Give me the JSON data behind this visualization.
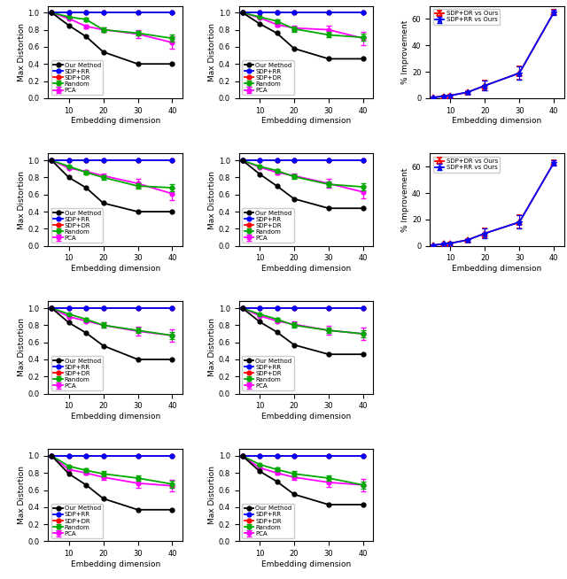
{
  "dims": [
    5,
    10,
    15,
    20,
    30,
    40
  ],
  "distortion_plots": [
    {
      "row": 0,
      "col": 0,
      "our": [
        1.0,
        0.85,
        0.72,
        0.54,
        0.4,
        0.4
      ],
      "sdp_rr": [
        1.0,
        1.0,
        1.0,
        1.0,
        1.0,
        1.0
      ],
      "sdp_dr": [
        1.0,
        1.0,
        1.0,
        1.0,
        1.0,
        1.0
      ],
      "random": [
        1.0,
        0.95,
        0.92,
        0.8,
        0.76,
        0.7
      ],
      "pca": [
        1.0,
        0.93,
        0.84,
        0.8,
        0.75,
        0.65
      ],
      "random_err": [
        0,
        0.0,
        0.02,
        0.03,
        0.03,
        0.04
      ],
      "pca_err": [
        0,
        0.0,
        0.02,
        0.03,
        0.05,
        0.07
      ],
      "legend_loc": "lower left"
    },
    {
      "row": 0,
      "col": 1,
      "our": [
        1.0,
        0.87,
        0.76,
        0.58,
        0.46,
        0.46
      ],
      "sdp_rr": [
        1.0,
        1.0,
        1.0,
        1.0,
        1.0,
        1.0
      ],
      "sdp_dr": [
        1.0,
        1.0,
        1.0,
        1.0,
        1.0,
        1.0
      ],
      "random": [
        1.0,
        0.95,
        0.9,
        0.81,
        0.74,
        0.71
      ],
      "pca": [
        1.0,
        0.94,
        0.86,
        0.82,
        0.8,
        0.7
      ],
      "random_err": [
        0,
        0.0,
        0.02,
        0.03,
        0.03,
        0.04
      ],
      "pca_err": [
        0,
        0.0,
        0.02,
        0.03,
        0.05,
        0.08
      ],
      "legend_loc": "lower left"
    },
    {
      "row": 1,
      "col": 0,
      "our": [
        1.0,
        0.8,
        0.68,
        0.5,
        0.4,
        0.4
      ],
      "sdp_rr": [
        1.0,
        1.0,
        1.0,
        1.0,
        1.0,
        1.0
      ],
      "sdp_dr": [
        1.0,
        1.0,
        1.0,
        1.0,
        1.0,
        1.0
      ],
      "random": [
        1.0,
        0.93,
        0.86,
        0.8,
        0.7,
        0.68
      ],
      "pca": [
        1.0,
        0.91,
        0.87,
        0.82,
        0.73,
        0.61
      ],
      "random_err": [
        0,
        0.0,
        0.02,
        0.03,
        0.03,
        0.04
      ],
      "pca_err": [
        0,
        0.0,
        0.02,
        0.03,
        0.05,
        0.07
      ],
      "legend_loc": "lower left"
    },
    {
      "row": 1,
      "col": 1,
      "our": [
        1.0,
        0.84,
        0.7,
        0.55,
        0.44,
        0.44
      ],
      "sdp_rr": [
        1.0,
        1.0,
        1.0,
        1.0,
        1.0,
        1.0
      ],
      "sdp_dr": [
        1.0,
        1.0,
        1.0,
        1.0,
        1.0,
        1.0
      ],
      "random": [
        1.0,
        0.93,
        0.88,
        0.81,
        0.72,
        0.69
      ],
      "pca": [
        1.0,
        0.92,
        0.86,
        0.82,
        0.73,
        0.63
      ],
      "random_err": [
        0,
        0.0,
        0.02,
        0.03,
        0.03,
        0.04
      ],
      "pca_err": [
        0,
        0.0,
        0.02,
        0.03,
        0.05,
        0.07
      ],
      "legend_loc": "lower left"
    },
    {
      "row": 2,
      "col": 0,
      "our": [
        1.0,
        0.83,
        0.71,
        0.56,
        0.4,
        0.4
      ],
      "sdp_rr": [
        1.0,
        1.0,
        1.0,
        1.0,
        1.0,
        1.0
      ],
      "sdp_dr": [
        1.0,
        1.0,
        1.0,
        1.0,
        1.0,
        1.0
      ],
      "random": [
        1.0,
        0.93,
        0.87,
        0.8,
        0.74,
        0.68
      ],
      "pca": [
        1.0,
        0.9,
        0.85,
        0.8,
        0.73,
        0.68
      ],
      "random_err": [
        0,
        0.0,
        0.02,
        0.03,
        0.03,
        0.04
      ],
      "pca_err": [
        0,
        0.0,
        0.02,
        0.03,
        0.05,
        0.07
      ],
      "legend_loc": "lower left"
    },
    {
      "row": 2,
      "col": 1,
      "our": [
        1.0,
        0.84,
        0.72,
        0.57,
        0.46,
        0.46
      ],
      "sdp_rr": [
        1.0,
        1.0,
        1.0,
        1.0,
        1.0,
        1.0
      ],
      "sdp_dr": [
        1.0,
        1.0,
        1.0,
        1.0,
        1.0,
        1.0
      ],
      "random": [
        1.0,
        0.93,
        0.87,
        0.8,
        0.74,
        0.7
      ],
      "pca": [
        1.0,
        0.91,
        0.85,
        0.81,
        0.74,
        0.7
      ],
      "random_err": [
        0,
        0.0,
        0.02,
        0.03,
        0.03,
        0.04
      ],
      "pca_err": [
        0,
        0.0,
        0.02,
        0.03,
        0.05,
        0.07
      ],
      "legend_loc": "lower left"
    },
    {
      "row": 3,
      "col": 0,
      "our": [
        1.0,
        0.79,
        0.66,
        0.5,
        0.37,
        0.37
      ],
      "sdp_rr": [
        1.0,
        1.0,
        1.0,
        1.0,
        1.0,
        1.0
      ],
      "sdp_dr": [
        1.0,
        1.0,
        1.0,
        1.0,
        1.0,
        1.0
      ],
      "random": [
        1.0,
        0.88,
        0.83,
        0.79,
        0.74,
        0.67
      ],
      "pca": [
        1.0,
        0.84,
        0.8,
        0.75,
        0.68,
        0.65
      ],
      "random_err": [
        0,
        0.0,
        0.02,
        0.03,
        0.03,
        0.04
      ],
      "pca_err": [
        0,
        0.0,
        0.02,
        0.03,
        0.05,
        0.07
      ],
      "legend_loc": "lower left"
    },
    {
      "row": 3,
      "col": 1,
      "our": [
        1.0,
        0.82,
        0.7,
        0.55,
        0.43,
        0.43
      ],
      "sdp_rr": [
        1.0,
        1.0,
        1.0,
        1.0,
        1.0,
        1.0
      ],
      "sdp_dr": [
        1.0,
        1.0,
        1.0,
        1.0,
        1.0,
        1.0
      ],
      "random": [
        1.0,
        0.9,
        0.84,
        0.79,
        0.74,
        0.66
      ],
      "pca": [
        1.0,
        0.86,
        0.8,
        0.75,
        0.69,
        0.66
      ],
      "random_err": [
        0,
        0.0,
        0.02,
        0.03,
        0.03,
        0.04
      ],
      "pca_err": [
        0,
        0.0,
        0.02,
        0.03,
        0.05,
        0.07
      ],
      "legend_loc": "lower left"
    }
  ],
  "improvement_plots": [
    {
      "row": 0,
      "col": 2,
      "dr_vals": [
        0.5,
        1.5,
        2.0,
        4.5,
        9.5,
        19.0,
        65.0
      ],
      "rr_vals": [
        0.5,
        1.5,
        2.0,
        4.5,
        9.5,
        19.0,
        65.0
      ],
      "dr_err": [
        0.3,
        0.4,
        0.4,
        1.0,
        3.5,
        5.0,
        2.0
      ],
      "rr_err": [
        0.3,
        0.4,
        0.4,
        1.0,
        3.5,
        5.0,
        2.0
      ],
      "ylim": [
        0,
        70
      ],
      "yticks": [
        0,
        20,
        40,
        60
      ]
    },
    {
      "row": 1,
      "col": 2,
      "dr_vals": [
        0.5,
        1.5,
        2.0,
        4.5,
        9.5,
        18.0,
        63.0
      ],
      "rr_vals": [
        0.5,
        1.5,
        2.0,
        4.5,
        9.5,
        18.0,
        63.0
      ],
      "dr_err": [
        0.3,
        0.4,
        0.4,
        1.0,
        3.5,
        5.0,
        2.0
      ],
      "rr_err": [
        0.3,
        0.4,
        0.4,
        1.0,
        3.5,
        5.0,
        2.0
      ],
      "ylim": [
        0,
        70
      ],
      "yticks": [
        0,
        20,
        40,
        60
      ]
    }
  ],
  "imp_dims": [
    5,
    8,
    10,
    15,
    20,
    30,
    40
  ],
  "colors": {
    "our": "#000000",
    "sdp_rr": "#0000ff",
    "sdp_dr": "#ff0000",
    "random": "#00aa00",
    "pca": "#ff00ff",
    "imp_dr": "#ff0000",
    "imp_rr": "#0000ff"
  },
  "xlabel": "Embedding dimension",
  "ylabel_dist": "Max Distortion",
  "ylabel_imp": "% Improvement",
  "xticks": [
    10,
    20,
    30,
    40
  ],
  "yticks_dist": [
    0,
    0.2,
    0.4,
    0.6,
    0.8,
    1.0
  ],
  "legend_imp_dr": "SDP+DR vs Ours",
  "legend_imp_rr": "SDP+RR vs Ours"
}
